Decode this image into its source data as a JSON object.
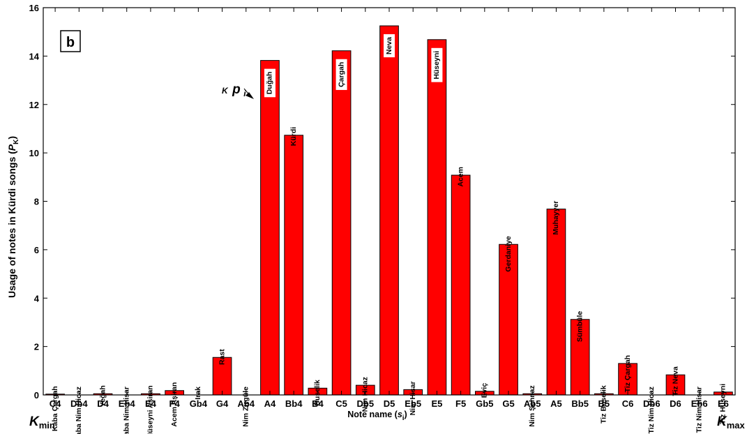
{
  "chart_data": {
    "type": "bar",
    "panel_label": "b",
    "ylabel": {
      "main": "Usage of notes in Kürdi songs (",
      "sym": "P",
      "sub": "K",
      "close": ")"
    },
    "xlabel": {
      "main": "Note name (",
      "sym": "s",
      "sub": "i",
      "close": ")"
    },
    "ylim": [
      0,
      16
    ],
    "yticks": [
      0,
      2,
      4,
      6,
      8,
      10,
      12,
      14,
      16
    ],
    "categories": [
      "C4",
      "Db4",
      "D4",
      "Eb4",
      "E4",
      "F4",
      "Gb4",
      "G4",
      "Ab4",
      "A4",
      "Bb4",
      "B4",
      "C5",
      "Db5",
      "D5",
      "Eb5",
      "E5",
      "F5",
      "Gb5",
      "G5",
      "Ab5",
      "A5",
      "Bb5",
      "B5",
      "C6",
      "Db6",
      "D6",
      "Eb6",
      "E6"
    ],
    "note_names": [
      "Kaba Çargah",
      "Kaba Nim Hicaz",
      "Yeğah",
      "Kaba Nim Hisar",
      "Hüseyni Aşiran",
      "Acem Aşiran",
      "Irak",
      "Rast",
      "Nim Zirgüle",
      "Duğah",
      "Kürdi",
      "Buselik",
      "Çargah",
      "Nim Hicaz",
      "Neva",
      "Nim Hisar",
      "Hüseyni",
      "Acem",
      "Eviç",
      "Gerdaniye",
      "Nim Şehnaz",
      "Muhayyer",
      "Sümbüle",
      "Tiz Buselik",
      "Tiz Çargah",
      "Tiz Nim Hicaz",
      "Tiz Neva",
      "Tiz Nim Hisar",
      "Tiz Hüseyni"
    ],
    "values": [
      0.02,
      0,
      0.05,
      0,
      0.05,
      0.18,
      0,
      1.55,
      0,
      13.82,
      10.73,
      0.28,
      14.22,
      0.4,
      15.25,
      0.22,
      14.68,
      9.08,
      0.15,
      6.22,
      0.05,
      7.68,
      3.12,
      0.05,
      1.3,
      0,
      0.83,
      0,
      0.12
    ],
    "name_inside_bar": [
      "Duğah",
      "Çargah",
      "Neva",
      "Hüseyni"
    ],
    "annotation": {
      "prefix": "K",
      "sym": "p",
      "sub": "i"
    },
    "kmin": {
      "sym": "K",
      "sub": "min"
    },
    "kmax": {
      "sym": "K",
      "sub": "max"
    },
    "bar_color": "#ff0000",
    "bar_edge_color": "#000000",
    "grid": false,
    "legend": "none"
  }
}
